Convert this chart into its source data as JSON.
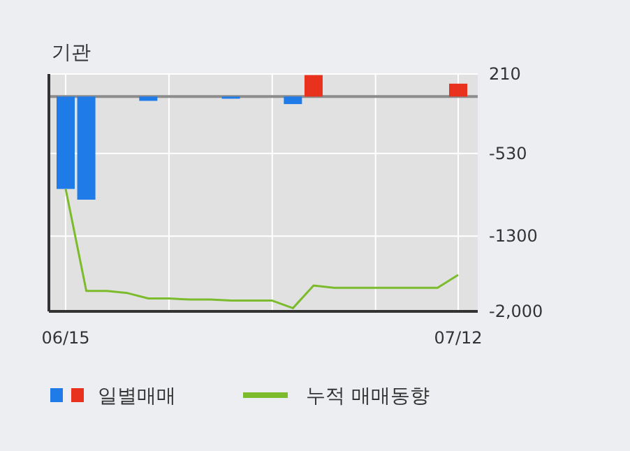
{
  "chart_data": {
    "type": "bar",
    "title": "기관",
    "categories": [
      "06/15",
      null,
      null,
      null,
      null,
      null,
      null,
      null,
      null,
      null,
      null,
      null,
      null,
      null,
      null,
      null,
      null,
      null,
      null,
      "07/12"
    ],
    "series": [
      {
        "name": "일별매매",
        "colors": [
          "#1e7be8",
          "#1e7be8",
          "#1e7be8",
          "#1e7be8",
          "#1e7be8",
          "#1e7be8",
          "#1e7be8",
          "#1e7be8",
          "#1e7be8",
          "#1e7be8",
          "#1e7be8",
          "#1e7be8",
          "#e8321e",
          "#1e7be8",
          "#1e7be8",
          "#1e7be8",
          "#1e7be8",
          "#1e7be8",
          "#1e7be8",
          "#e8321e"
        ],
        "values": [
          -860,
          -960,
          0,
          0,
          -40,
          0,
          0,
          0,
          -20,
          0,
          0,
          -70,
          200,
          0,
          0,
          0,
          0,
          0,
          0,
          120
        ]
      },
      {
        "name": "누적 매매동향",
        "type": "line",
        "color": "#7cbb2c",
        "values": [
          -860,
          -1810,
          -1810,
          -1830,
          -1880,
          -1880,
          -1890,
          -1890,
          -1900,
          -1900,
          -1900,
          -1970,
          -1760,
          -1780,
          -1780,
          -1780,
          -1780,
          -1780,
          -1780,
          -1660
        ]
      }
    ],
    "ylim": [
      -2000,
      210
    ],
    "yticks": [
      210,
      -530,
      -1300,
      {
        "value": -2000,
        "label": "-2,000"
      }
    ],
    "ref_lines": [
      {
        "axis": "y",
        "value": 0,
        "color": "#8c8c8c"
      }
    ],
    "grid": true,
    "legend": "bottom"
  }
}
